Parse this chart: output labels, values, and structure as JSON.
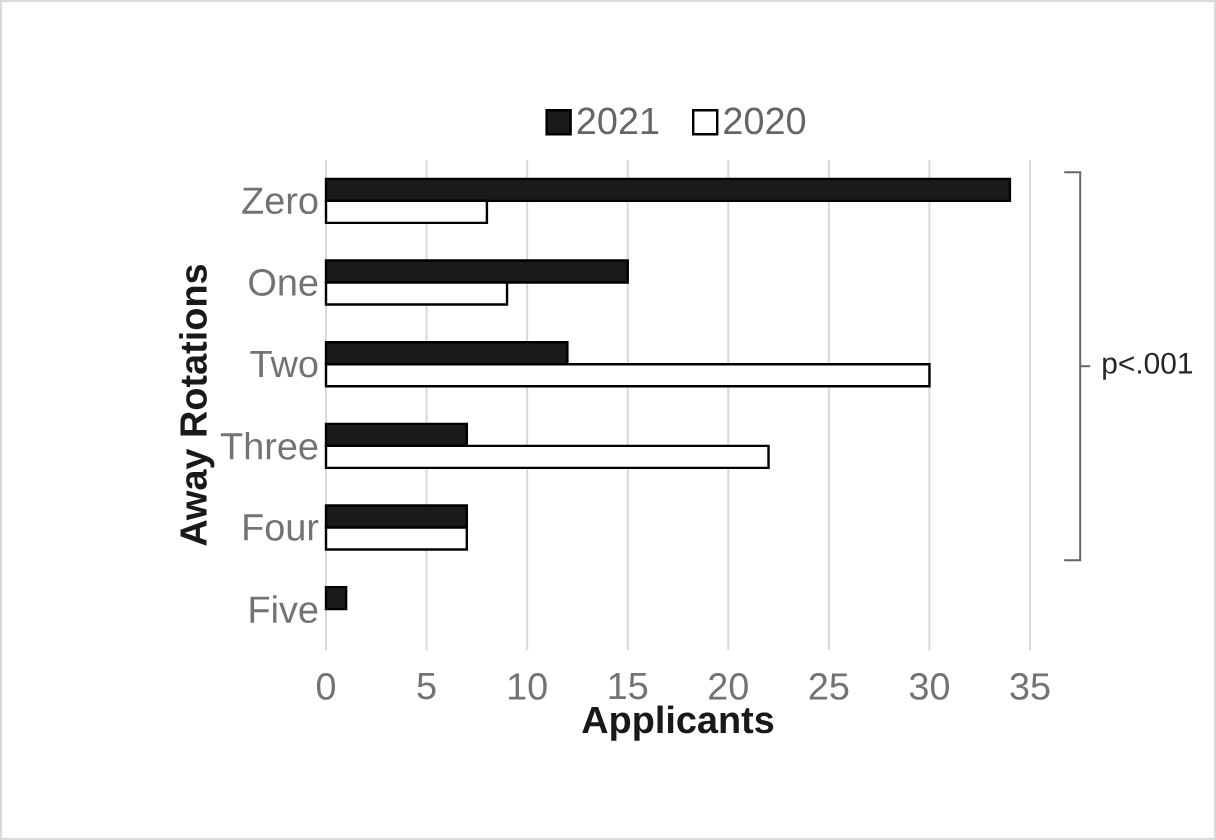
{
  "chart_data": {
    "type": "bar",
    "orientation": "horizontal",
    "xlabel": "Applicants",
    "ylabel": "Away Rotations",
    "categories": [
      "Zero",
      "One",
      "Two",
      "Three",
      "Four",
      "Five"
    ],
    "series": [
      {
        "name": "2021",
        "color": "#1a1a1a",
        "values": [
          34,
          15,
          12,
          7,
          7,
          1
        ]
      },
      {
        "name": "2020",
        "color": "#ffffff",
        "values": [
          8,
          9,
          30,
          22,
          7,
          null
        ]
      }
    ],
    "xlim": [
      0,
      35
    ],
    "xticks": [
      0,
      5,
      10,
      15,
      20,
      25,
      30,
      35
    ],
    "grid": "x",
    "legend": "top",
    "annotations": [
      "p<.001"
    ]
  }
}
